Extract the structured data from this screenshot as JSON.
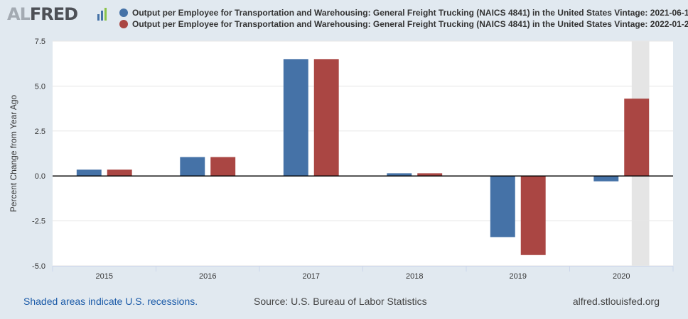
{
  "header": {
    "logo_al": "AL",
    "logo_fred": "FRED",
    "logo_mark": "chart-logo-icon"
  },
  "chart_data": {
    "type": "bar",
    "categories": [
      "2015",
      "2016",
      "2017",
      "2018",
      "2019",
      "2020"
    ],
    "series": [
      {
        "name": "Output per Employee for Transportation and Warehousing: General Freight Trucking (NAICS 4841) in the United States Vintage: 2021-06-1",
        "color": "#4572a7",
        "values": [
          0.35,
          1.05,
          6.5,
          0.15,
          -3.4,
          -0.3
        ]
      },
      {
        "name": "Output per Employee for Transportation and Warehousing: General Freight Trucking (NAICS 4841) in the United States Vintage: 2022-01-2",
        "color": "#aa4643",
        "values": [
          0.35,
          1.05,
          6.5,
          0.15,
          -4.4,
          4.3
        ]
      }
    ],
    "ylabel": "Percent Change from Year Ago",
    "ylim": [
      -5.0,
      7.5
    ],
    "yticks": [
      "-5.0",
      "-2.5",
      "0.0",
      "2.5",
      "5.0",
      "7.5"
    ],
    "recession_shading": {
      "start_year": 2020,
      "start_fraction": 0.1,
      "end_fraction": 0.27,
      "color": "#e5e5e5"
    },
    "grid": true,
    "legend_position": "top"
  },
  "footer": {
    "recession_note": "Shaded areas indicate U.S. recessions.",
    "source": "Source: U.S. Bureau of Labor Statistics",
    "site": "alfred.stlouisfed.org"
  }
}
